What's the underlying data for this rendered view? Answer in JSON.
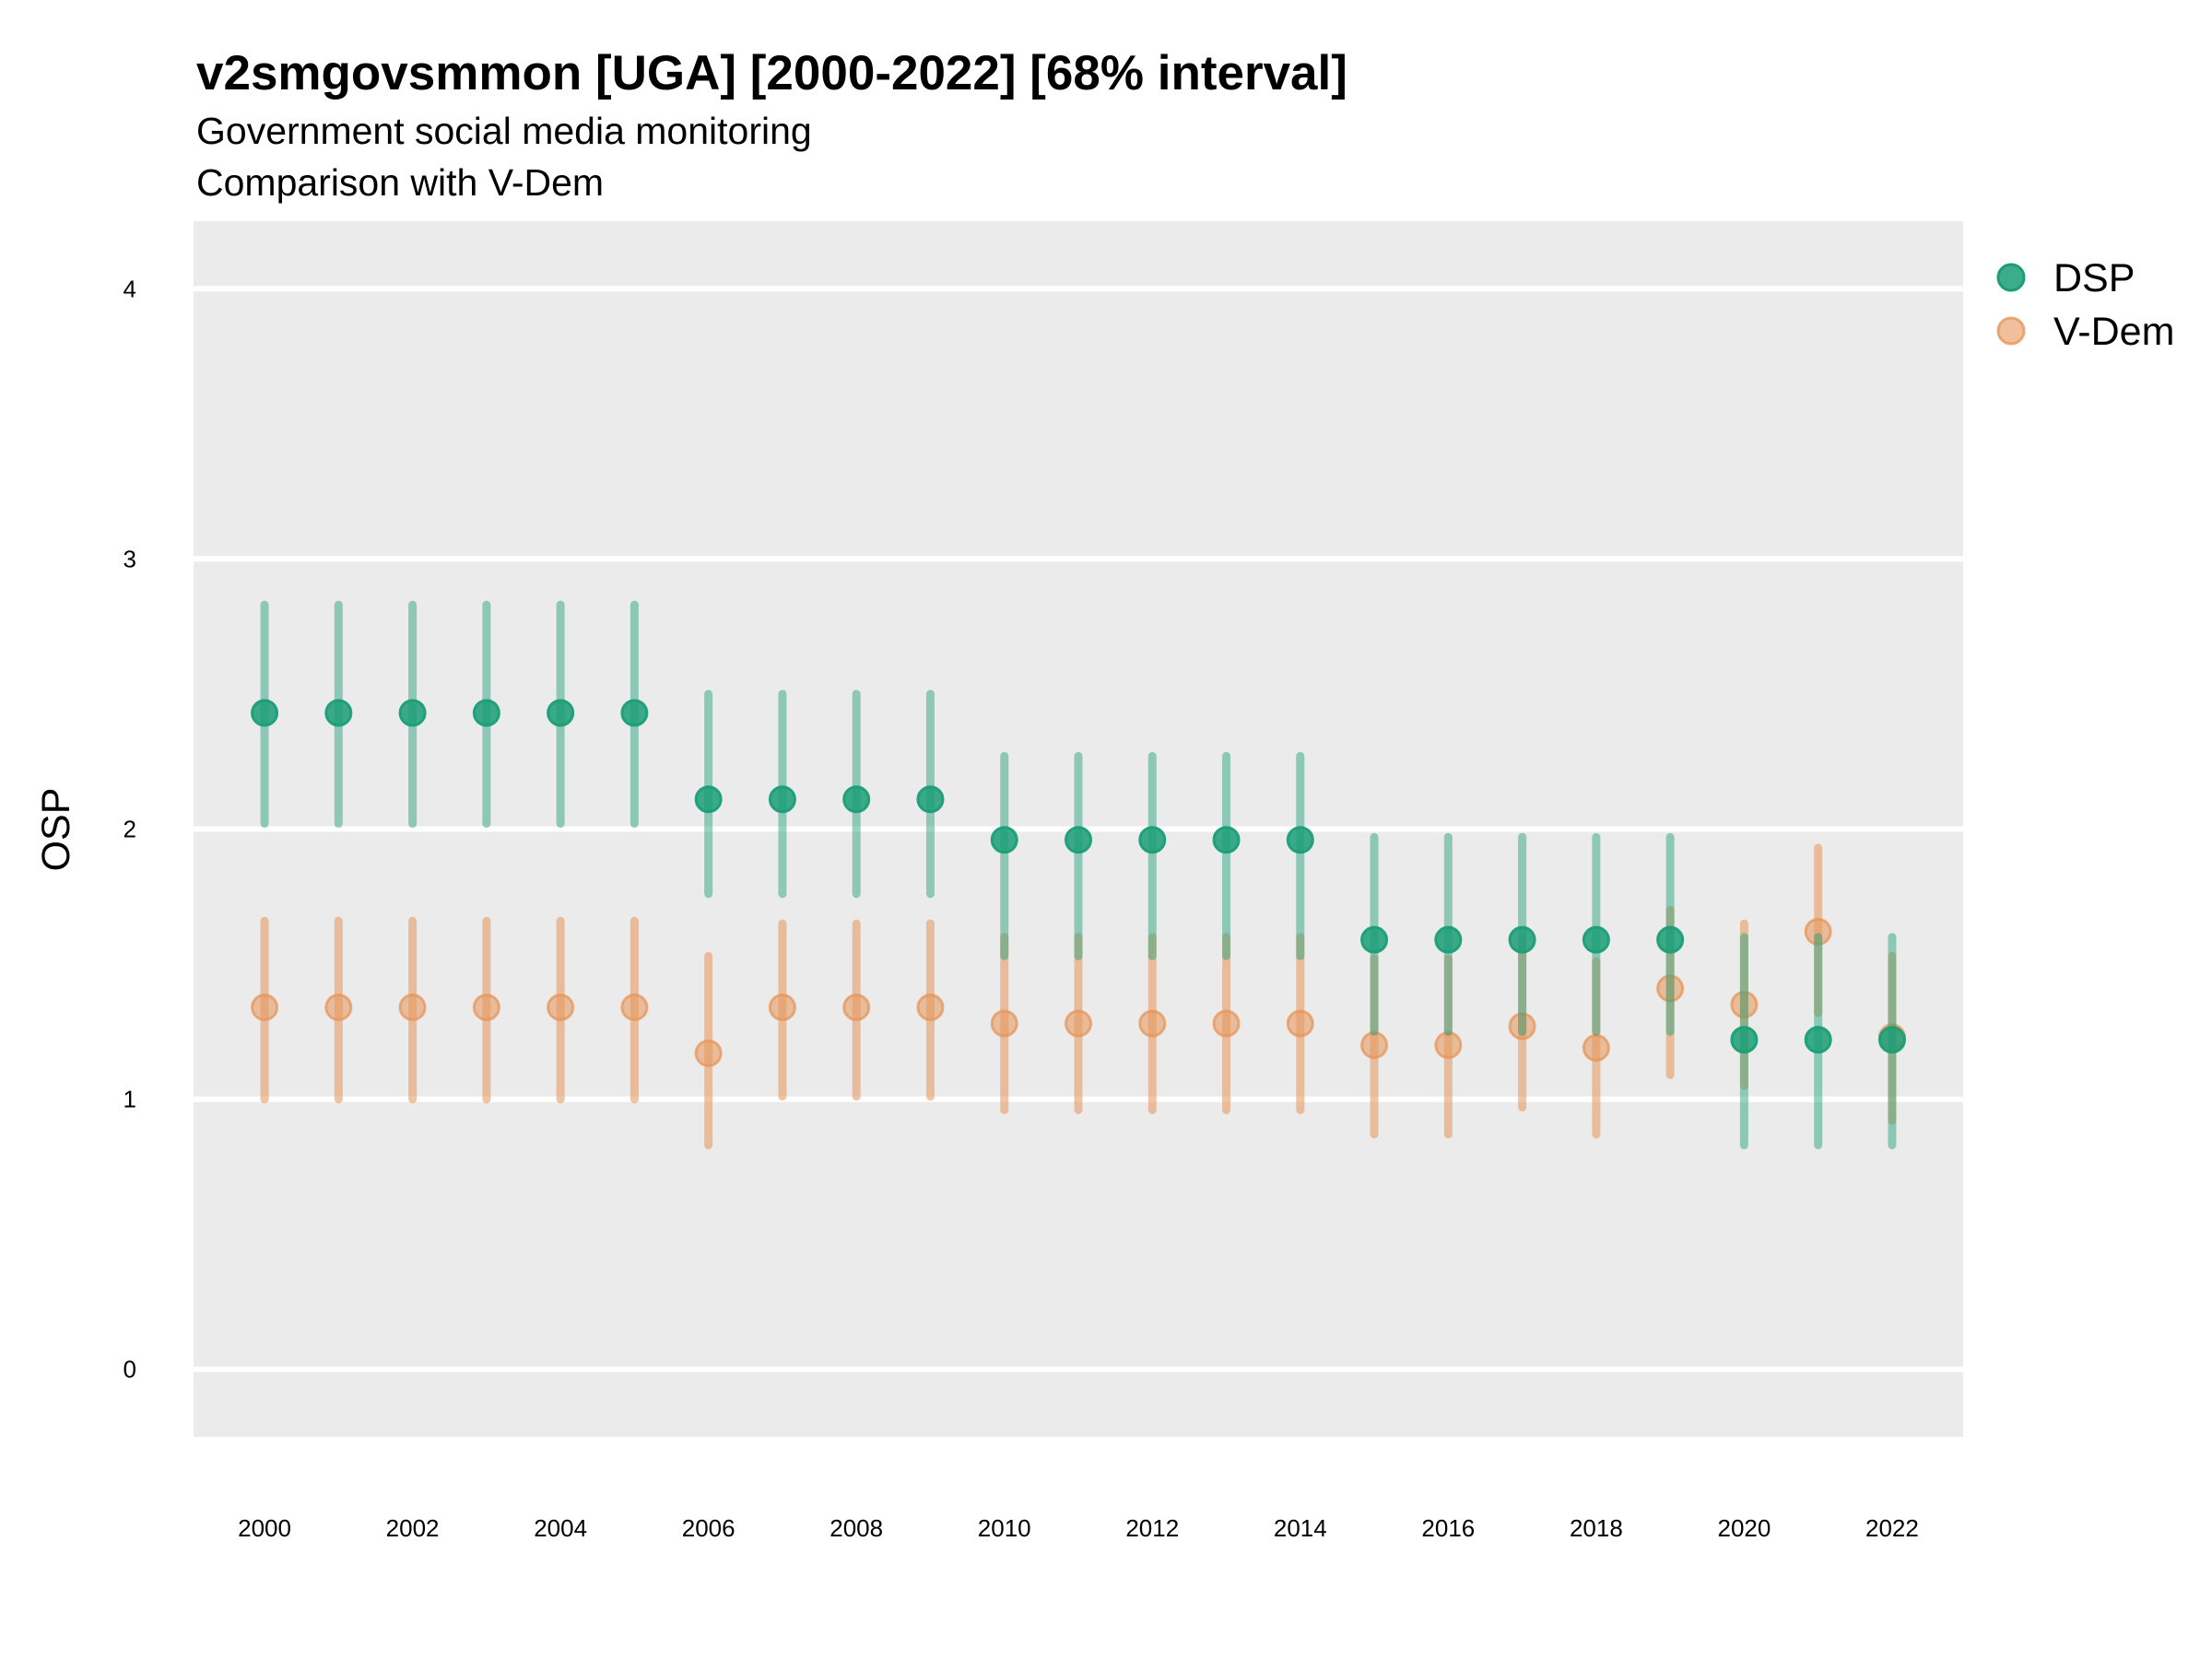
{
  "chart_data": {
    "type": "scatter",
    "title": "v2smgovsmmon [UGA] [2000-2022] [68% interval]",
    "subtitle": "Government social media monitoring",
    "subtitle2": "Comparison with V-Dem",
    "xlabel": "",
    "ylabel": "OSP",
    "xlim": [
      1999.04,
      2022.96
    ],
    "ylim": [
      -0.25,
      4.25
    ],
    "grid": true,
    "legend_position": "right",
    "x_ticks": [
      2000,
      2002,
      2004,
      2006,
      2008,
      2010,
      2012,
      2014,
      2016,
      2018,
      2020,
      2022
    ],
    "x_tick_labels": [
      "2000",
      "2002",
      "2004",
      "2006",
      "2008",
      "2010",
      "2012",
      "2014",
      "2016",
      "2018",
      "2020",
      "2022"
    ],
    "y_ticks": [
      0,
      1,
      2,
      3,
      4
    ],
    "y_tick_labels": [
      "0",
      "1",
      "2",
      "3",
      "4"
    ],
    "x": [
      2000,
      2001,
      2002,
      2003,
      2004,
      2005,
      2006,
      2007,
      2008,
      2009,
      2010,
      2011,
      2012,
      2013,
      2014,
      2015,
      2016,
      2017,
      2018,
      2019,
      2020,
      2021,
      2022
    ],
    "series": [
      {
        "name": "V-Dem",
        "color": "#e6965a",
        "values": [
          1.34,
          1.34,
          1.34,
          1.34,
          1.34,
          1.34,
          1.17,
          1.34,
          1.34,
          1.34,
          1.28,
          1.28,
          1.28,
          1.28,
          1.28,
          1.2,
          1.2,
          1.27,
          1.19,
          1.41,
          1.35,
          1.62,
          1.23
        ],
        "lower": [
          1.0,
          1.0,
          1.0,
          1.0,
          1.0,
          1.0,
          0.83,
          1.01,
          1.01,
          1.01,
          0.96,
          0.96,
          0.96,
          0.96,
          0.96,
          0.87,
          0.87,
          0.97,
          0.87,
          1.09,
          1.05,
          1.32,
          0.92
        ],
        "upper": [
          1.66,
          1.66,
          1.66,
          1.66,
          1.66,
          1.66,
          1.53,
          1.65,
          1.65,
          1.65,
          1.6,
          1.6,
          1.6,
          1.6,
          1.6,
          1.52,
          1.52,
          1.59,
          1.51,
          1.7,
          1.65,
          1.93,
          1.53
        ]
      },
      {
        "name": "DSP",
        "color": "#1b9e77",
        "values": [
          2.43,
          2.43,
          2.43,
          2.43,
          2.43,
          2.43,
          2.11,
          2.11,
          2.11,
          2.11,
          1.96,
          1.96,
          1.96,
          1.96,
          1.96,
          1.59,
          1.59,
          1.59,
          1.59,
          1.59,
          1.22,
          1.22,
          1.22
        ],
        "lower": [
          2.02,
          2.02,
          2.02,
          2.02,
          2.02,
          2.02,
          1.76,
          1.76,
          1.76,
          1.76,
          1.53,
          1.53,
          1.53,
          1.53,
          1.53,
          1.25,
          1.25,
          1.25,
          1.25,
          1.25,
          0.83,
          0.83,
          0.83
        ],
        "upper": [
          2.83,
          2.83,
          2.83,
          2.83,
          2.83,
          2.83,
          2.5,
          2.5,
          2.5,
          2.5,
          2.27,
          2.27,
          2.27,
          2.27,
          2.27,
          1.97,
          1.97,
          1.97,
          1.97,
          1.97,
          1.6,
          1.6,
          1.6
        ]
      }
    ],
    "legend": [
      {
        "label": "DSP",
        "color": "#1b9e77"
      },
      {
        "label": "V-Dem",
        "color": "#e6965a"
      }
    ],
    "panel_background": "#ebebeb",
    "gridline_color": "#ffffff"
  }
}
